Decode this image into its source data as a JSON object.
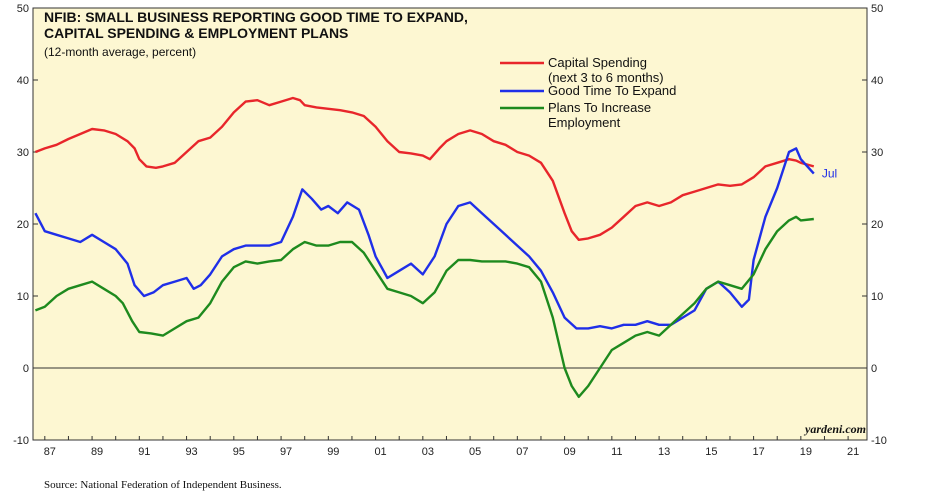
{
  "chart_data": {
    "type": "line",
    "title_lines": [
      "NFIB: SMALL BUSINESS REPORTING GOOD TIME TO EXPAND,",
      "CAPITAL SPENDING & EMPLOYMENT PLANS"
    ],
    "subtitle": "(12-month average, percent)",
    "xlabel": "",
    "ylabel": "",
    "xlim": [
      1986.5,
      2021.8
    ],
    "ylim": [
      -10,
      50
    ],
    "y_ticks": [
      -10,
      0,
      10,
      20,
      30,
      40,
      50
    ],
    "x_ticks": [
      {
        "year": 1987,
        "label": "87"
      },
      {
        "year": 1989,
        "label": "89"
      },
      {
        "year": 1991,
        "label": "91"
      },
      {
        "year": 1993,
        "label": "93"
      },
      {
        "year": 1995,
        "label": "95"
      },
      {
        "year": 1997,
        "label": "97"
      },
      {
        "year": 1999,
        "label": "99"
      },
      {
        "year": 2001,
        "label": "01"
      },
      {
        "year": 2003,
        "label": "03"
      },
      {
        "year": 2005,
        "label": "05"
      },
      {
        "year": 2007,
        "label": "07"
      },
      {
        "year": 2009,
        "label": "09"
      },
      {
        "year": 2011,
        "label": "11"
      },
      {
        "year": 2013,
        "label": "13"
      },
      {
        "year": 2015,
        "label": "15"
      },
      {
        "year": 2017,
        "label": "17"
      },
      {
        "year": 2019,
        "label": "19"
      },
      {
        "year": 2021,
        "label": "21"
      }
    ],
    "zero_line": true,
    "grid": false,
    "legend_position": "top-right",
    "end_label": "Jul",
    "series": [
      {
        "name_lines": [
          "Capital Spending",
          "(next 3 to 6 months)"
        ],
        "color": "#e8262b",
        "points": [
          [
            1986.6,
            30.0
          ],
          [
            1987.0,
            30.5
          ],
          [
            1987.5,
            31.0
          ],
          [
            1988.0,
            31.8
          ],
          [
            1988.5,
            32.5
          ],
          [
            1989.0,
            33.2
          ],
          [
            1989.5,
            33.0
          ],
          [
            1990.0,
            32.5
          ],
          [
            1990.5,
            31.5
          ],
          [
            1990.8,
            30.5
          ],
          [
            1991.0,
            29.0
          ],
          [
            1991.3,
            28.0
          ],
          [
            1991.7,
            27.8
          ],
          [
            1992.0,
            28.0
          ],
          [
            1992.5,
            28.5
          ],
          [
            1993.0,
            30.0
          ],
          [
            1993.5,
            31.5
          ],
          [
            1994.0,
            32.0
          ],
          [
            1994.5,
            33.5
          ],
          [
            1995.0,
            35.5
          ],
          [
            1995.5,
            37.0
          ],
          [
            1996.0,
            37.2
          ],
          [
            1996.5,
            36.5
          ],
          [
            1997.0,
            37.0
          ],
          [
            1997.5,
            37.5
          ],
          [
            1997.8,
            37.2
          ],
          [
            1998.0,
            36.5
          ],
          [
            1998.5,
            36.2
          ],
          [
            1999.0,
            36.0
          ],
          [
            1999.5,
            35.8
          ],
          [
            2000.0,
            35.5
          ],
          [
            2000.5,
            35.0
          ],
          [
            2001.0,
            33.5
          ],
          [
            2001.5,
            31.5
          ],
          [
            2002.0,
            30.0
          ],
          [
            2002.5,
            29.8
          ],
          [
            2003.0,
            29.5
          ],
          [
            2003.3,
            29.0
          ],
          [
            2003.7,
            30.5
          ],
          [
            2004.0,
            31.5
          ],
          [
            2004.5,
            32.5
          ],
          [
            2005.0,
            33.0
          ],
          [
            2005.5,
            32.5
          ],
          [
            2006.0,
            31.5
          ],
          [
            2006.5,
            31.0
          ],
          [
            2007.0,
            30.0
          ],
          [
            2007.5,
            29.5
          ],
          [
            2008.0,
            28.5
          ],
          [
            2008.5,
            26.0
          ],
          [
            2009.0,
            21.5
          ],
          [
            2009.3,
            19.0
          ],
          [
            2009.6,
            17.8
          ],
          [
            2010.0,
            18.0
          ],
          [
            2010.5,
            18.5
          ],
          [
            2011.0,
            19.5
          ],
          [
            2011.5,
            21.0
          ],
          [
            2012.0,
            22.5
          ],
          [
            2012.5,
            23.0
          ],
          [
            2013.0,
            22.5
          ],
          [
            2013.5,
            23.0
          ],
          [
            2014.0,
            24.0
          ],
          [
            2014.5,
            24.5
          ],
          [
            2015.0,
            25.0
          ],
          [
            2015.5,
            25.5
          ],
          [
            2016.0,
            25.3
          ],
          [
            2016.5,
            25.5
          ],
          [
            2017.0,
            26.5
          ],
          [
            2017.5,
            28.0
          ],
          [
            2018.0,
            28.5
          ],
          [
            2018.5,
            29.0
          ],
          [
            2018.8,
            28.8
          ],
          [
            2019.0,
            28.5
          ],
          [
            2019.55,
            28.0
          ]
        ]
      },
      {
        "name": "Good Time To Expand",
        "color": "#1f2fe8",
        "points": [
          [
            1986.6,
            21.5
          ],
          [
            1987.0,
            19.0
          ],
          [
            1987.5,
            18.5
          ],
          [
            1988.0,
            18.0
          ],
          [
            1988.5,
            17.5
          ],
          [
            1989.0,
            18.5
          ],
          [
            1989.5,
            17.5
          ],
          [
            1990.0,
            16.5
          ],
          [
            1990.5,
            14.5
          ],
          [
            1990.8,
            11.5
          ],
          [
            1991.2,
            10.0
          ],
          [
            1991.6,
            10.5
          ],
          [
            1992.0,
            11.5
          ],
          [
            1992.5,
            12.0
          ],
          [
            1993.0,
            12.5
          ],
          [
            1993.3,
            11.0
          ],
          [
            1993.6,
            11.5
          ],
          [
            1994.0,
            13.0
          ],
          [
            1994.5,
            15.5
          ],
          [
            1995.0,
            16.5
          ],
          [
            1995.5,
            17.0
          ],
          [
            1996.0,
            17.0
          ],
          [
            1996.5,
            17.0
          ],
          [
            1997.0,
            17.5
          ],
          [
            1997.5,
            21.0
          ],
          [
            1997.9,
            24.8
          ],
          [
            1998.3,
            23.5
          ],
          [
            1998.7,
            22.0
          ],
          [
            1999.0,
            22.5
          ],
          [
            1999.4,
            21.5
          ],
          [
            1999.8,
            23.0
          ],
          [
            2000.3,
            22.0
          ],
          [
            2000.7,
            18.5
          ],
          [
            2001.0,
            15.5
          ],
          [
            2001.5,
            12.5
          ],
          [
            2002.0,
            13.5
          ],
          [
            2002.5,
            14.5
          ],
          [
            2003.0,
            13.0
          ],
          [
            2003.5,
            15.5
          ],
          [
            2004.0,
            20.0
          ],
          [
            2004.5,
            22.5
          ],
          [
            2005.0,
            23.0
          ],
          [
            2005.5,
            21.5
          ],
          [
            2006.0,
            20.0
          ],
          [
            2006.5,
            18.5
          ],
          [
            2007.0,
            17.0
          ],
          [
            2007.5,
            15.5
          ],
          [
            2008.0,
            13.5
          ],
          [
            2008.5,
            10.5
          ],
          [
            2009.0,
            7.0
          ],
          [
            2009.5,
            5.5
          ],
          [
            2010.0,
            5.5
          ],
          [
            2010.5,
            5.8
          ],
          [
            2011.0,
            5.5
          ],
          [
            2011.5,
            6.0
          ],
          [
            2012.0,
            6.0
          ],
          [
            2012.5,
            6.5
          ],
          [
            2013.0,
            6.0
          ],
          [
            2013.5,
            6.0
          ],
          [
            2014.0,
            7.0
          ],
          [
            2014.5,
            8.0
          ],
          [
            2015.0,
            11.0
          ],
          [
            2015.5,
            12.0
          ],
          [
            2016.0,
            10.5
          ],
          [
            2016.5,
            8.5
          ],
          [
            2016.8,
            9.5
          ],
          [
            2017.0,
            15.0
          ],
          [
            2017.5,
            21.0
          ],
          [
            2018.0,
            25.0
          ],
          [
            2018.5,
            30.0
          ],
          [
            2018.8,
            30.5
          ],
          [
            2019.0,
            29.0
          ],
          [
            2019.55,
            27.0
          ]
        ]
      },
      {
        "name_lines": [
          "Plans To Increase",
          "Employment"
        ],
        "color": "#1e8a1e",
        "points": [
          [
            1986.6,
            8.0
          ],
          [
            1987.0,
            8.5
          ],
          [
            1987.5,
            10.0
          ],
          [
            1988.0,
            11.0
          ],
          [
            1988.5,
            11.5
          ],
          [
            1989.0,
            12.0
          ],
          [
            1989.5,
            11.0
          ],
          [
            1990.0,
            10.0
          ],
          [
            1990.3,
            9.0
          ],
          [
            1990.7,
            6.5
          ],
          [
            1991.0,
            5.0
          ],
          [
            1991.5,
            4.8
          ],
          [
            1992.0,
            4.5
          ],
          [
            1992.5,
            5.5
          ],
          [
            1993.0,
            6.5
          ],
          [
            1993.5,
            7.0
          ],
          [
            1994.0,
            9.0
          ],
          [
            1994.5,
            12.0
          ],
          [
            1995.0,
            14.0
          ],
          [
            1995.5,
            14.8
          ],
          [
            1996.0,
            14.5
          ],
          [
            1996.5,
            14.8
          ],
          [
            1997.0,
            15.0
          ],
          [
            1997.5,
            16.5
          ],
          [
            1998.0,
            17.5
          ],
          [
            1998.5,
            17.0
          ],
          [
            1999.0,
            17.0
          ],
          [
            1999.5,
            17.5
          ],
          [
            2000.0,
            17.5
          ],
          [
            2000.5,
            16.0
          ],
          [
            2001.0,
            13.5
          ],
          [
            2001.5,
            11.0
          ],
          [
            2002.0,
            10.5
          ],
          [
            2002.5,
            10.0
          ],
          [
            2003.0,
            9.0
          ],
          [
            2003.5,
            10.5
          ],
          [
            2004.0,
            13.5
          ],
          [
            2004.5,
            15.0
          ],
          [
            2005.0,
            15.0
          ],
          [
            2005.5,
            14.8
          ],
          [
            2006.0,
            14.8
          ],
          [
            2006.5,
            14.8
          ],
          [
            2007.0,
            14.5
          ],
          [
            2007.5,
            14.0
          ],
          [
            2008.0,
            12.0
          ],
          [
            2008.5,
            7.0
          ],
          [
            2009.0,
            0.0
          ],
          [
            2009.3,
            -2.5
          ],
          [
            2009.6,
            -4.0
          ],
          [
            2010.0,
            -2.5
          ],
          [
            2010.5,
            0.0
          ],
          [
            2011.0,
            2.5
          ],
          [
            2011.5,
            3.5
          ],
          [
            2012.0,
            4.5
          ],
          [
            2012.5,
            5.0
          ],
          [
            2013.0,
            4.5
          ],
          [
            2013.5,
            6.0
          ],
          [
            2014.0,
            7.5
          ],
          [
            2014.5,
            9.0
          ],
          [
            2015.0,
            11.0
          ],
          [
            2015.5,
            12.0
          ],
          [
            2016.0,
            11.5
          ],
          [
            2016.5,
            11.0
          ],
          [
            2017.0,
            13.0
          ],
          [
            2017.5,
            16.5
          ],
          [
            2018.0,
            19.0
          ],
          [
            2018.5,
            20.5
          ],
          [
            2018.8,
            21.0
          ],
          [
            2019.0,
            20.5
          ],
          [
            2019.55,
            20.7
          ]
        ]
      }
    ]
  },
  "watermark": "yardeni.com",
  "source": "Source: National Federation of Independent Business."
}
